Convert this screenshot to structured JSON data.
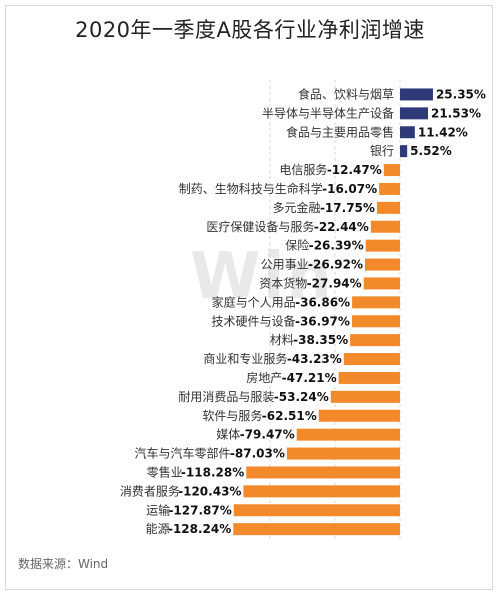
{
  "title": "2020年一季度A股各行业净利润增速",
  "source": "数据来源：Wind",
  "watermark": "Win",
  "colors": {
    "positive": "#2e3a78",
    "negative": "#f28a2c",
    "grid": "#d8d8d8",
    "text": "#333333"
  },
  "chart_data": {
    "type": "bar",
    "orientation": "horizontal",
    "title": "2020年一季度A股各行业净利润增速",
    "categories": [
      "食品、饮料与烟草",
      "半导体与半导体生产设备",
      "食品与主要用品零售",
      "银行",
      "电信服务",
      "制药、生物科技与生命科学",
      "多元金融",
      "医疗保健设备与服务",
      "保险",
      "公用事业",
      "资本货物",
      "家庭与个人用品",
      "技术硬件与设备",
      "材料",
      "商业和专业服务",
      "房地产",
      "耐用消费品与服装",
      "软件与服务",
      "媒体",
      "汽车与汽车零部件",
      "零售业",
      "消费者服务",
      "运输",
      "能源"
    ],
    "values": [
      25.35,
      21.53,
      11.42,
      5.52,
      -12.47,
      -16.07,
      -17.75,
      -22.44,
      -26.39,
      -26.92,
      -27.94,
      -36.86,
      -36.97,
      -38.35,
      -43.23,
      -47.21,
      -53.24,
      -62.51,
      -79.47,
      -87.03,
      -118.28,
      -120.43,
      -127.87,
      -128.24
    ],
    "labels": [
      "25.35%",
      "21.53%",
      "11.42%",
      "5.52%",
      "-12.47%",
      "-16.07%",
      "-17.75%",
      "-22.44%",
      "-26.39%",
      "-26.92%",
      "-27.94%",
      "-36.86%",
      "-36.97%",
      "-38.35%",
      "-43.23%",
      "-47.21%",
      "-53.24%",
      "-62.51%",
      "-79.47%",
      "-87.03%",
      "-118.28%",
      "-120.43%",
      "-127.87%",
      "-128.24%"
    ],
    "xlim": [
      -150,
      50
    ],
    "grid": true,
    "legend": "none"
  }
}
